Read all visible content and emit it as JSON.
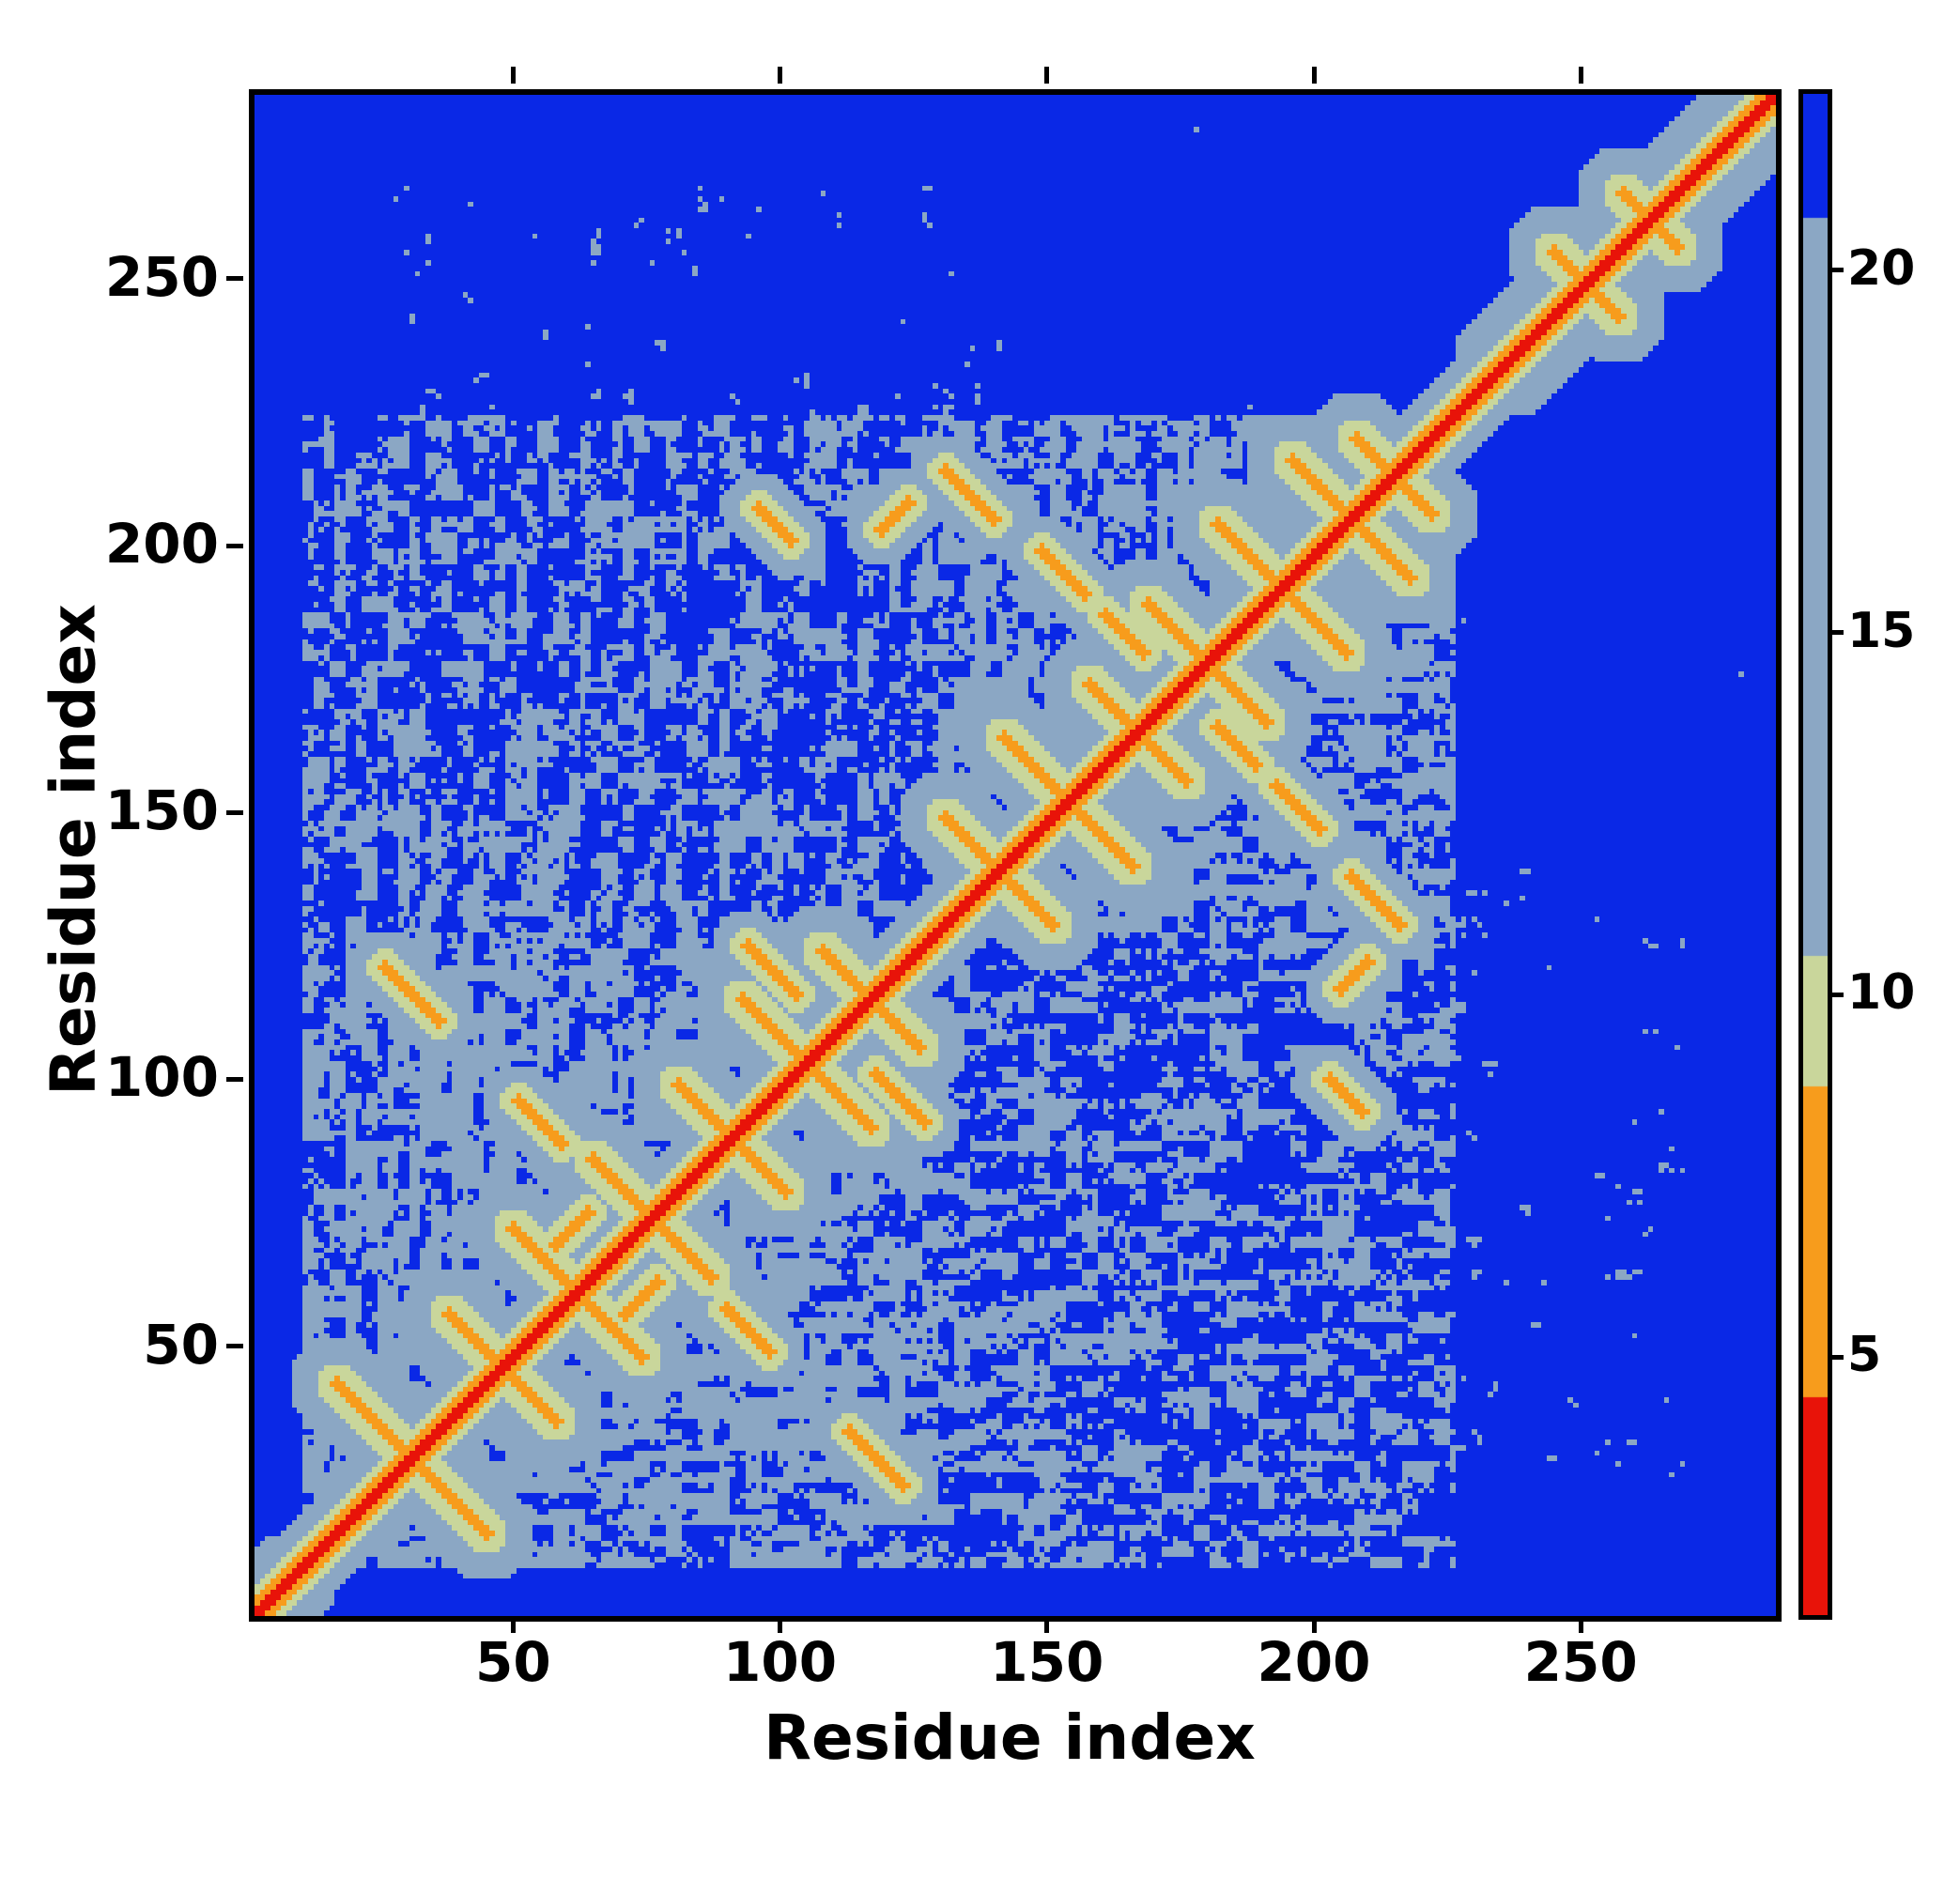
{
  "chart_data": {
    "type": "heatmap",
    "title": "",
    "xlabel": "Residue index",
    "ylabel": "Residue index",
    "x_ticks": [
      50,
      100,
      150,
      200,
      250
    ],
    "y_ticks": [
      50,
      100,
      150,
      200,
      250
    ],
    "n_residues": 285,
    "colorbar_ticks": [
      5,
      10,
      15,
      20
    ],
    "colorbar_range": [
      1.5,
      22.5
    ],
    "legend_position": "right",
    "grid": false,
    "colormap": [
      {
        "max": 4.5,
        "color": "#e81309"
      },
      {
        "max": 8.8,
        "color": "#f79c1c"
      },
      {
        "max": 10.6,
        "color": "#c9d69b"
      },
      {
        "max": 20.8,
        "color": "#8ba7c4"
      },
      {
        "max": 99,
        "color": "#0a28e6"
      }
    ],
    "seed": 7,
    "structure": {
      "diagonal_bands": [
        {
          "d": 1,
          "v": 2.2
        },
        {
          "d": 3,
          "v": 6.5
        },
        {
          "d": 5,
          "v": 10.0
        },
        {
          "d": 10,
          "v": 16.0
        }
      ],
      "hairpins": [
        {
          "c": 30,
          "a": 14
        },
        {
          "c": 47,
          "a": 10
        },
        {
          "c": 61,
          "a": 12
        },
        {
          "c": 75,
          "a": 11
        },
        {
          "c": 90,
          "a": 10
        },
        {
          "c": 104,
          "a": 12
        },
        {
          "c": 116,
          "a": 9
        },
        {
          "c": 140,
          "a": 10
        },
        {
          "c": 153,
          "a": 12
        },
        {
          "c": 166,
          "a": 9
        },
        {
          "c": 179,
          "a": 11
        },
        {
          "c": 193,
          "a": 12
        },
        {
          "c": 206,
          "a": 11
        },
        {
          "c": 214,
          "a": 7
        },
        {
          "c": 250,
          "a": 6
        },
        {
          "c": 262,
          "a": 5
        }
      ],
      "contacts": [
        {
          "x": 25,
          "y": 122,
          "len": 10,
          "dir": -1
        },
        {
          "x": 50,
          "y": 97,
          "len": 8,
          "dir": -1
        },
        {
          "x": 93,
          "y": 126,
          "len": 9,
          "dir": -1
        },
        {
          "x": 95,
          "y": 208,
          "len": 6,
          "dir": -1
        },
        {
          "x": 118,
          "y": 204,
          "len": 5,
          "dir": 1
        },
        {
          "x": 130,
          "y": 215,
          "len": 9,
          "dir": -1
        },
        {
          "x": 148,
          "y": 200,
          "len": 8,
          "dir": -1
        },
        {
          "x": 160,
          "y": 188,
          "len": 7,
          "dir": -1
        },
        {
          "x": 57,
          "y": 70,
          "len": 6,
          "dir": 1
        }
      ],
      "regions": {
        "domain1": [
          10,
          125
        ],
        "domain2": [
          125,
          225
        ],
        "tail_start": 225
      },
      "speckle_p": {
        "d1d1": 0.6,
        "d2d2": 0.58,
        "cross": 0.48,
        "tail_cross": 0.15,
        "tail": 0.04
      },
      "tail_band": 14,
      "nterm_blob": 16
    }
  }
}
